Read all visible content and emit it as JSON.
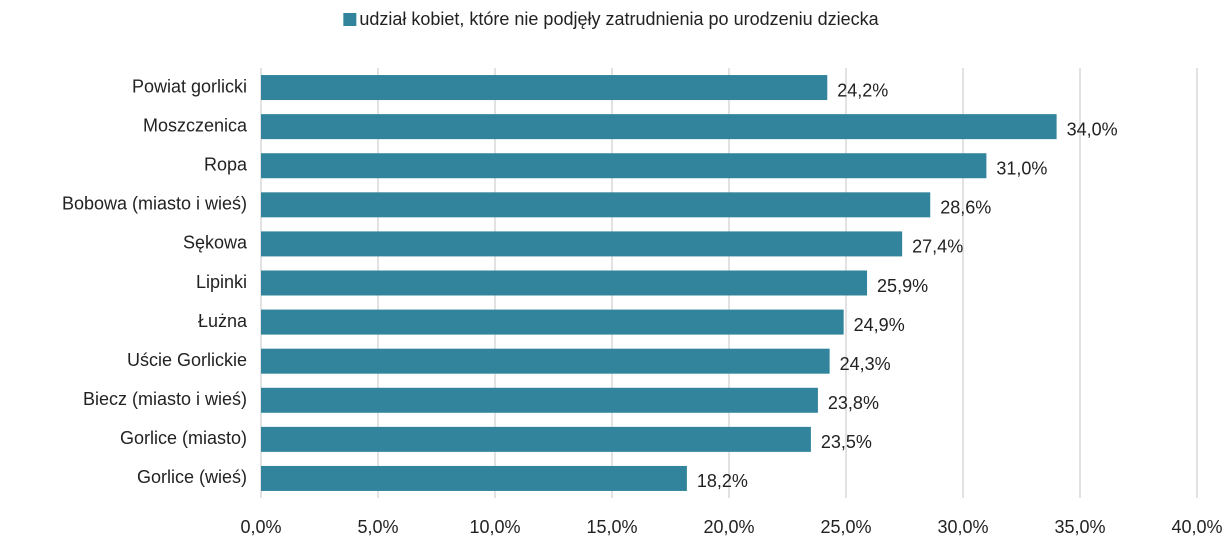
{
  "chart_data": {
    "type": "bar",
    "orientation": "horizontal",
    "categories": [
      "Powiat gorlicki",
      "Moszczenica",
      "Ropa",
      "Bobowa (miasto i wieś)",
      "Sękowa",
      "Lipinki",
      "Łużna",
      "Uście Gorlickie",
      "Biecz (miasto i wieś)",
      "Gorlice (miasto)",
      "Gorlice (wieś)"
    ],
    "series": [
      {
        "name": "udział kobiet, które nie podjęły zatrudnienia po urodzeniu dziecka",
        "color": "#31849b",
        "values": [
          24.2,
          34.0,
          31.0,
          28.6,
          27.4,
          25.9,
          24.9,
          24.3,
          23.8,
          23.5,
          18.2
        ],
        "value_labels": [
          "24,2%",
          "34,0%",
          "31,0%",
          "28,6%",
          "27,4%",
          "25,9%",
          "24,9%",
          "24,3%",
          "23,8%",
          "23,5%",
          "18,2%"
        ]
      }
    ],
    "xlim": [
      0,
      40
    ],
    "xticks": [
      {
        "value": 0,
        "label": "0,0%"
      },
      {
        "value": 5,
        "label": "5,0%"
      },
      {
        "value": 10,
        "label": "10,0%"
      },
      {
        "value": 15,
        "label": "15,0%"
      },
      {
        "value": 20,
        "label": "20,0%"
      },
      {
        "value": 25,
        "label": "25,0%"
      },
      {
        "value": 30,
        "label": "30,0%"
      },
      {
        "value": 35,
        "label": "35,0%"
      },
      {
        "value": 40,
        "label": "40,0%"
      }
    ],
    "grid": true,
    "legend": "top"
  }
}
